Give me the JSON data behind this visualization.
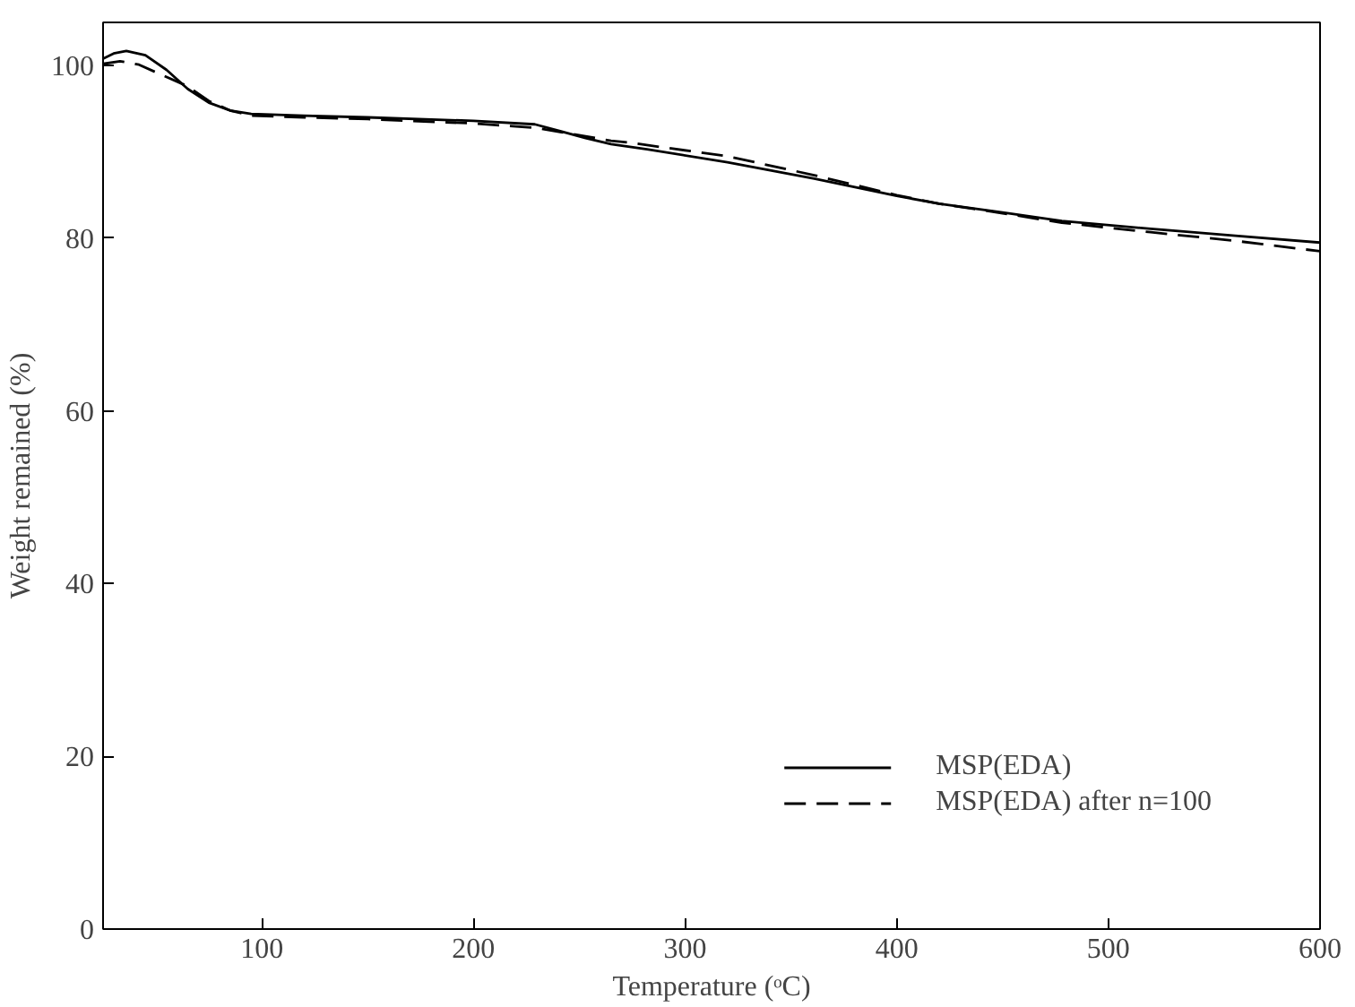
{
  "chart_data": {
    "type": "line",
    "xlabel": "Temperature (ᵒC)",
    "ylabel": "Weight remained (%)",
    "xlim": [
      25,
      600
    ],
    "ylim": [
      0,
      105
    ],
    "xticks": [
      100,
      200,
      300,
      400,
      500,
      600
    ],
    "yticks": [
      0,
      20,
      40,
      60,
      80,
      100
    ],
    "grid": false,
    "legend": "bottom right",
    "series": [
      {
        "name": "MSP(EDA)",
        "color": "#000000",
        "line_style": "solid",
        "x": [
          25,
          30,
          36,
          45,
          55,
          65,
          75,
          85,
          95,
          120,
          150,
          200,
          229,
          241,
          253,
          265,
          282,
          320,
          361,
          400,
          420,
          450,
          478,
          520,
          560,
          600
        ],
        "values": [
          100.8,
          101.4,
          101.7,
          101.2,
          99.5,
          97.3,
          95.7,
          94.8,
          94.4,
          94.2,
          94.0,
          93.6,
          93.2,
          92.4,
          91.6,
          90.9,
          90.3,
          88.8,
          86.9,
          84.9,
          84.0,
          83.0,
          82.0,
          81.1,
          80.3,
          79.5
        ]
      },
      {
        "name": "MSP(EDA) after n=100",
        "color": "#000000",
        "line_style": "dashed",
        "x": [
          25,
          33,
          42,
          52,
          65,
          75,
          85,
          95,
          120,
          150,
          200,
          229,
          241,
          253,
          265,
          273,
          320,
          361,
          400,
          420,
          450,
          478,
          520,
          560,
          600
        ],
        "values": [
          100.2,
          100.5,
          100.1,
          99.0,
          97.6,
          95.9,
          94.8,
          94.2,
          94.0,
          93.8,
          93.3,
          92.8,
          92.3,
          91.8,
          91.3,
          91.1,
          89.5,
          87.3,
          85.0,
          84.0,
          82.9,
          81.8,
          80.7,
          79.7,
          78.5
        ]
      }
    ]
  }
}
